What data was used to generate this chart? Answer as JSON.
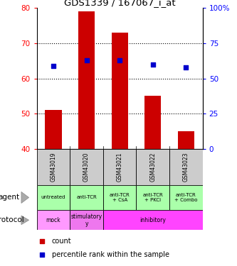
{
  "title": "GDS1339 / 167067_i_at",
  "samples": [
    "GSM43019",
    "GSM43020",
    "GSM43021",
    "GSM43022",
    "GSM43023"
  ],
  "bar_bottoms": [
    40,
    40,
    40,
    40,
    40
  ],
  "bar_tops": [
    51,
    79,
    73,
    55,
    45
  ],
  "percentile_values": [
    59,
    63,
    63,
    60,
    58
  ],
  "left_ylim": [
    40,
    80
  ],
  "right_ylim": [
    0,
    100
  ],
  "left_yticks": [
    40,
    50,
    60,
    70,
    80
  ],
  "right_yticks": [
    0,
    25,
    50,
    75,
    100
  ],
  "right_yticklabels": [
    "0",
    "25",
    "50",
    "75",
    "100%"
  ],
  "bar_color": "#cc0000",
  "dot_color": "#0000cc",
  "agent_labels": [
    "untreated",
    "anti-TCR",
    "anti-TCR\n+ CsA",
    "anti-TCR\n+ PKCi",
    "anti-TCR\n+ Combo"
  ],
  "protocol_info": [
    {
      "label": "mock",
      "start": 0,
      "end": 1,
      "color": "#ff99ff"
    },
    {
      "label": "stimulatory\ny",
      "start": 1,
      "end": 2,
      "color": "#ee77ee"
    },
    {
      "label": "inhibitory",
      "start": 2,
      "end": 5,
      "color": "#ff44ff"
    }
  ],
  "agent_bg": "#aaffaa",
  "sample_bg": "#cccccc",
  "legend_count_color": "#cc0000",
  "legend_pct_color": "#0000cc",
  "hline_values": [
    50,
    60,
    70
  ]
}
